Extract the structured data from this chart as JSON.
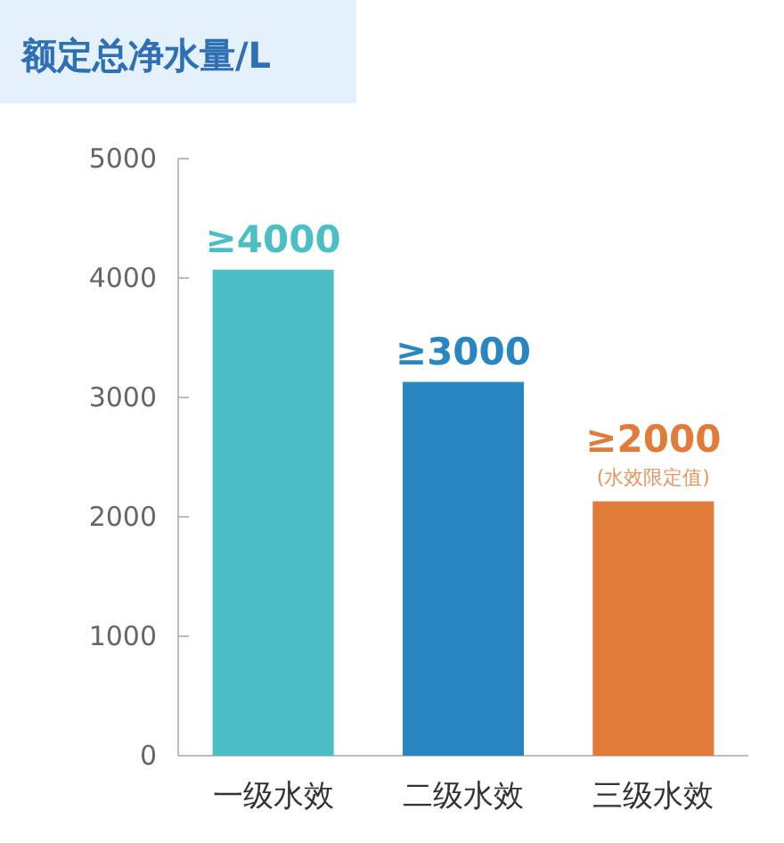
{
  "chart_data": {
    "type": "bar",
    "title": "额定总净水量/L",
    "categories": [
      "一级水效",
      "二级水效",
      "三级水效"
    ],
    "values": [
      4070,
      3130,
      2130
    ],
    "colors": [
      "#4bbfc4",
      "#2a86c0",
      "#e07b3a"
    ],
    "value_labels": [
      "≥4000",
      "≥3000",
      "≥2000"
    ],
    "annotations": [
      {
        "text": "(水效限定值)",
        "x": "三级水效",
        "y": 2130
      }
    ],
    "ylim": [
      0,
      5000
    ],
    "yticks": [
      0,
      1000,
      2000,
      3000,
      4000,
      5000
    ],
    "grid": false
  }
}
